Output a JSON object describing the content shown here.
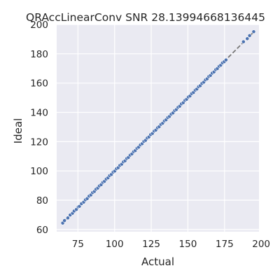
{
  "chart_data": {
    "type": "scatter",
    "title": "QRAccLinearConv SNR 28.13994668136445",
    "xlabel": "Actual",
    "ylabel": "Ideal",
    "xlim": [
      60.5,
      198.5
    ],
    "ylim": [
      58.5,
      200
    ],
    "xticks": [
      75,
      100,
      125,
      150,
      175,
      200
    ],
    "yticks": [
      60,
      80,
      100,
      120,
      140,
      160,
      180,
      200
    ],
    "grid": true,
    "background": "#eaeaf2",
    "point_color": "#4c72b0",
    "line_color": "#777777",
    "reference_line": {
      "style": "dashed",
      "from": [
        65,
        65
      ],
      "to": [
        195,
        195
      ]
    },
    "series": [
      {
        "x": [
          64.6,
          65.8,
          68.1,
          69.7,
          71.3,
          72.4,
          73.9,
          75.2,
          76.0,
          77.4,
          78.9,
          80.1,
          81.3,
          82.6,
          83.8,
          85.0,
          86.2,
          87.3,
          88.5,
          89.6,
          90.8,
          92.0,
          93.1,
          94.3,
          95.5,
          96.6,
          97.8,
          99.0,
          100.1,
          101.3,
          102.4,
          103.6,
          104.8,
          106.0,
          107.1,
          108.3,
          109.4,
          110.6,
          111.8,
          113.0,
          114.1,
          115.3,
          116.4,
          117.6,
          118.8,
          120.0,
          121.1,
          122.3,
          123.4,
          124.6,
          125.8,
          127.0,
          128.1,
          129.3,
          130.4,
          131.6,
          132.8,
          134.0,
          135.1,
          136.3,
          137.4,
          138.6,
          139.8,
          141.0,
          142.1,
          143.3,
          144.4,
          145.6,
          146.8,
          148.0,
          149.1,
          150.3,
          151.4,
          152.6,
          153.8,
          155.0,
          156.1,
          157.3,
          158.4,
          159.6,
          160.8,
          162.0,
          163.1,
          164.3,
          165.4,
          166.6,
          167.8,
          169.0,
          170.1,
          171.3,
          172.4,
          173.6,
          174.8,
          176.0,
          187.9,
          190.5,
          192.1,
          194.9
        ],
        "y": [
          64.4,
          66.1,
          67.9,
          69.9,
          71.1,
          72.6,
          73.7,
          75.4,
          75.8,
          77.6,
          78.7,
          80.3,
          81.1,
          82.8,
          83.6,
          85.2,
          86.0,
          87.5,
          88.3,
          89.8,
          90.6,
          92.2,
          92.9,
          94.5,
          95.3,
          96.8,
          97.6,
          99.2,
          99.9,
          101.5,
          102.2,
          103.8,
          104.6,
          106.2,
          106.9,
          108.5,
          109.2,
          110.8,
          111.6,
          113.2,
          113.9,
          115.5,
          116.2,
          117.8,
          118.6,
          120.2,
          120.9,
          122.5,
          123.2,
          124.8,
          125.6,
          127.2,
          127.9,
          129.5,
          130.2,
          131.8,
          132.6,
          134.2,
          134.9,
          136.5,
          137.2,
          138.8,
          139.6,
          141.2,
          141.9,
          143.5,
          144.2,
          145.8,
          146.6,
          148.2,
          148.9,
          150.5,
          151.2,
          152.8,
          153.6,
          155.2,
          155.9,
          157.5,
          158.2,
          159.8,
          160.6,
          162.2,
          162.9,
          164.5,
          165.2,
          166.8,
          167.6,
          169.2,
          169.9,
          171.5,
          172.2,
          173.8,
          174.6,
          175.8,
          188.2,
          190.3,
          192.4,
          195.1
        ]
      }
    ]
  }
}
